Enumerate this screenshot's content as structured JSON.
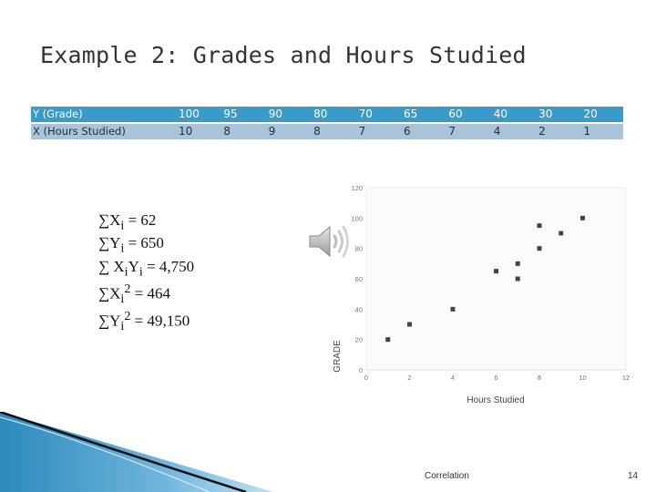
{
  "title": "Example 2:  Grades and Hours Studied",
  "table": {
    "y_label": "Y (Grade)",
    "x_label": "X (Hours Studied)",
    "y_values": [
      "100",
      "95",
      "90",
      "80",
      "70",
      "65",
      "60",
      "40",
      "30",
      "20"
    ],
    "x_values": [
      "10",
      "8",
      "9",
      "8",
      "7",
      "6",
      "7",
      "4",
      "2",
      "1"
    ]
  },
  "formulas": [
    {
      "lhs": "∑X",
      "sub": "i",
      "sup": "",
      "rhs": " = 62"
    },
    {
      "lhs": "∑Y",
      "sub": "i",
      "sup": "",
      "rhs": " = 650"
    },
    {
      "lhs": "∑ X",
      "sub": "i",
      "sup": "",
      "mid": "Y",
      "sub2": "i",
      "rhs": " = 4,750"
    },
    {
      "lhs": "∑X",
      "sub": "i",
      "sup": "2",
      "rhs": " = 464"
    },
    {
      "lhs": "∑Y",
      "sub": "i",
      "sup": "2",
      "rhs": " = 49,150"
    }
  ],
  "icons": [
    "speaker-icon"
  ],
  "chart_data": {
    "type": "scatter",
    "title": "",
    "xlabel": "Hours Studied",
    "ylabel": "GRADE",
    "xlim": [
      0,
      12
    ],
    "ylim": [
      0,
      120
    ],
    "xticks": [
      "0",
      "2",
      "4",
      "6",
      "8",
      "10",
      "12"
    ],
    "yticks": [
      "0",
      "20",
      "40",
      "60",
      "80",
      "100",
      "120"
    ],
    "grid": false,
    "points": [
      {
        "x": 10,
        "y": 100
      },
      {
        "x": 8,
        "y": 95
      },
      {
        "x": 9,
        "y": 90
      },
      {
        "x": 8,
        "y": 80
      },
      {
        "x": 7,
        "y": 70
      },
      {
        "x": 6,
        "y": 65
      },
      {
        "x": 7,
        "y": 60
      },
      {
        "x": 4,
        "y": 40
      },
      {
        "x": 2,
        "y": 30
      },
      {
        "x": 1,
        "y": 20
      }
    ],
    "marker_color": "#444444"
  },
  "footer": {
    "center": "Correlation",
    "page": "14"
  },
  "colors": {
    "table_header": "#3a9bc9",
    "table_row": "#a9c3d9",
    "swoosh": "#2f8fc0"
  }
}
